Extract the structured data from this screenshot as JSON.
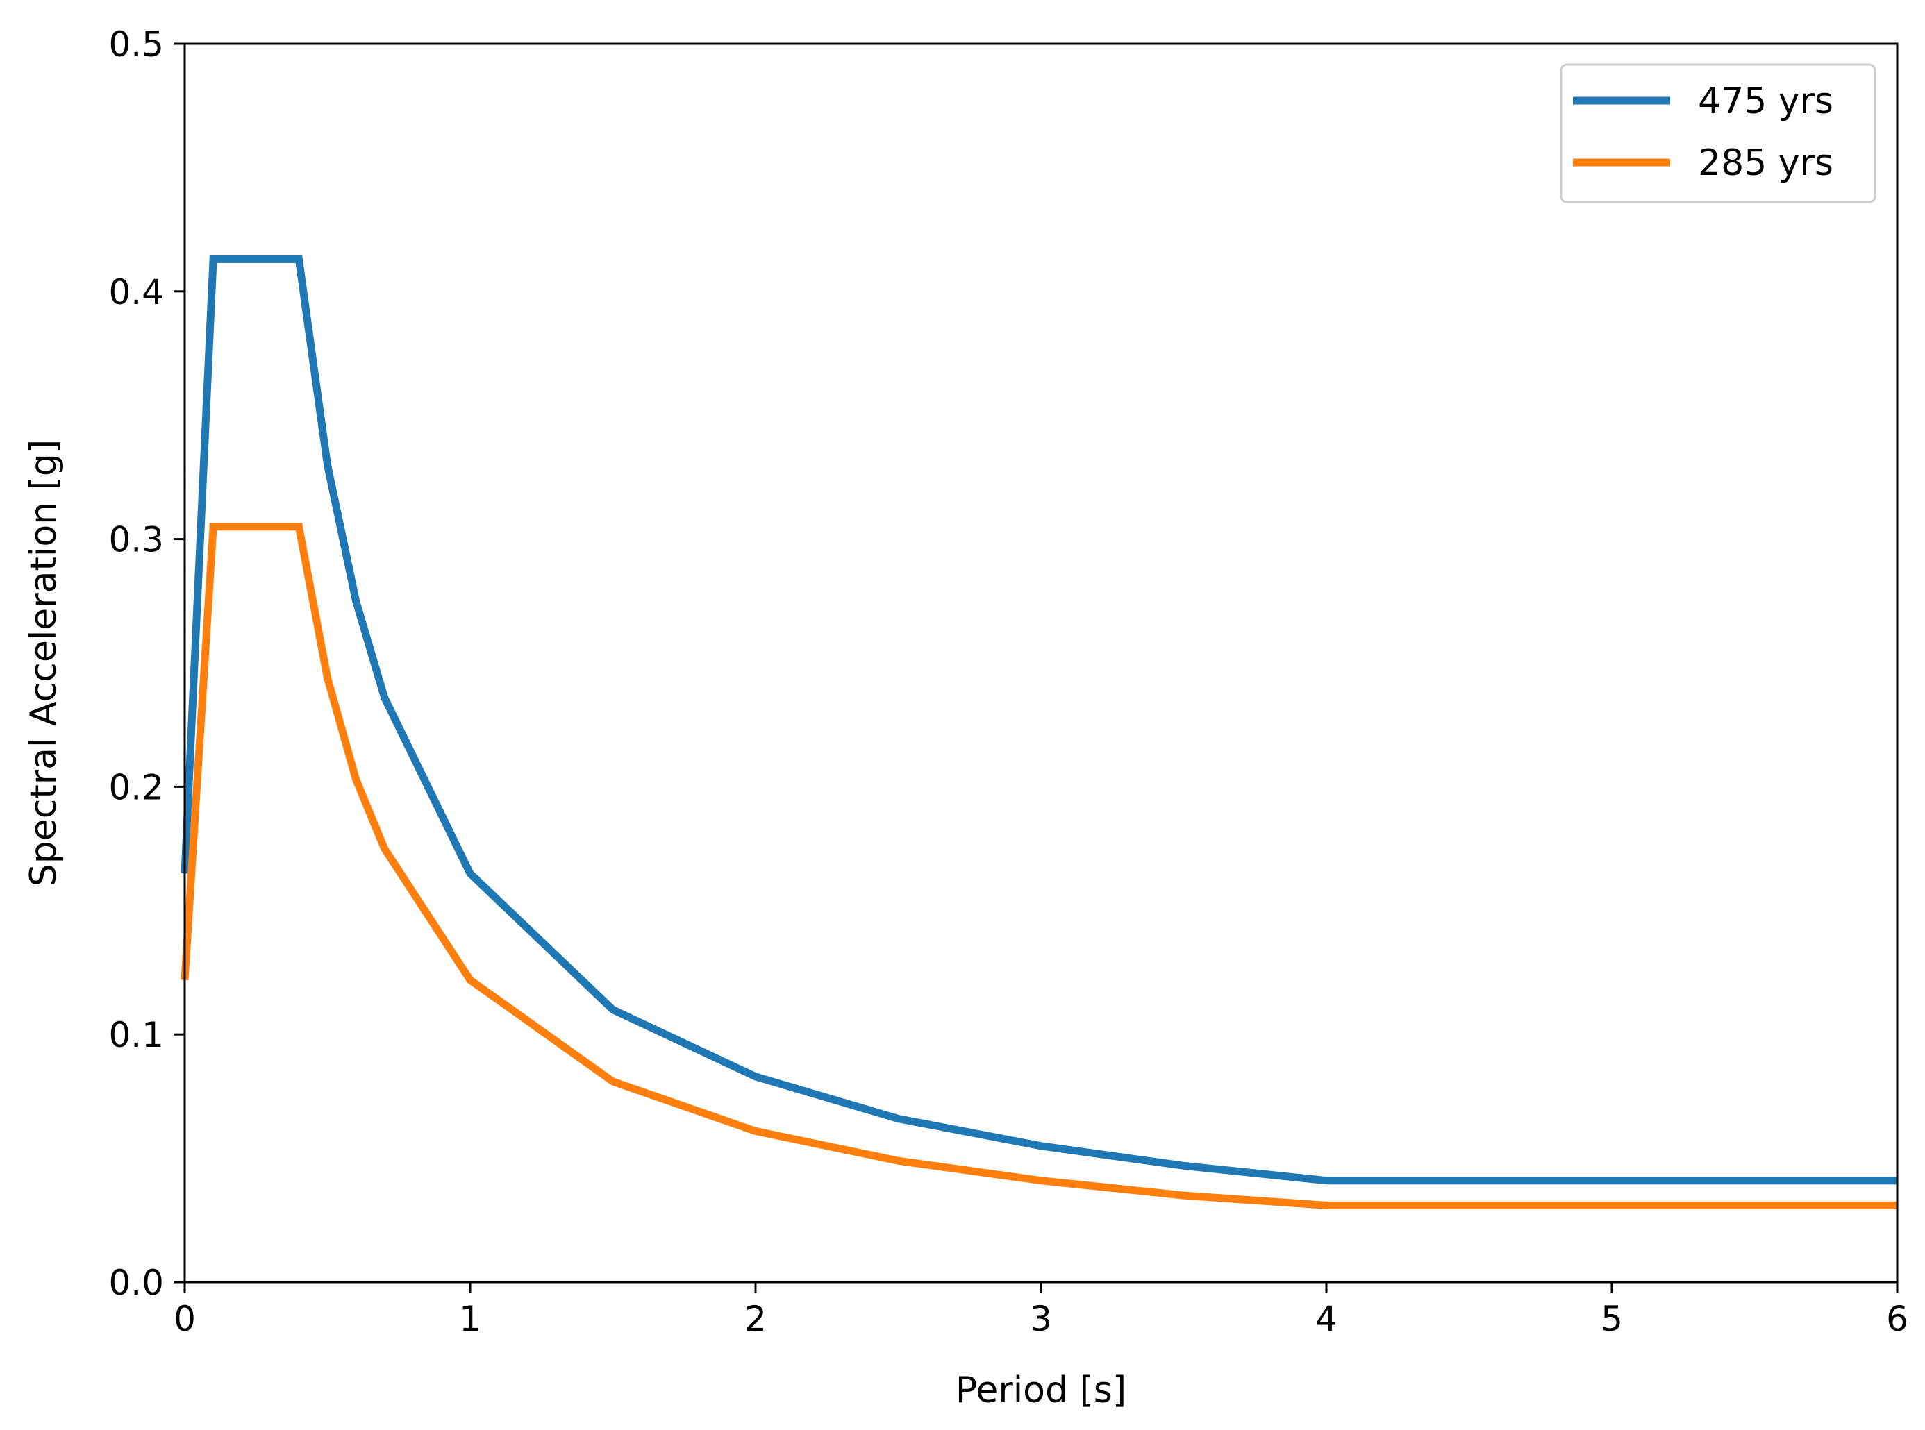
{
  "chart_data": {
    "type": "line",
    "title": "",
    "xlabel": "Period [s]",
    "ylabel": "Spectral Acceleration [g]",
    "xlim": [
      0,
      6
    ],
    "ylim": [
      0,
      0.5
    ],
    "xticks": [
      0,
      1,
      2,
      3,
      4,
      5,
      6
    ],
    "xtick_labels": [
      "0",
      "1",
      "2",
      "3",
      "4",
      "5",
      "6"
    ],
    "yticks": [
      0.0,
      0.1,
      0.2,
      0.3,
      0.4,
      0.5
    ],
    "ytick_labels": [
      "0.0",
      "0.1",
      "0.2",
      "0.3",
      "0.4",
      "0.5"
    ],
    "grid": false,
    "legend_position": "top-right",
    "series": [
      {
        "name": "475 yrs",
        "color": "#1f77b4",
        "x": [
          0,
          0.1,
          0.4,
          0.5,
          0.6,
          0.7,
          1.0,
          1.5,
          2.0,
          2.5,
          3.0,
          3.5,
          4.0,
          6.0
        ],
        "y": [
          0.165,
          0.413,
          0.413,
          0.33,
          0.275,
          0.236,
          0.165,
          0.11,
          0.083,
          0.066,
          0.055,
          0.047,
          0.041,
          0.041
        ]
      },
      {
        "name": "285 yrs",
        "color": "#ff7f0e",
        "x": [
          0,
          0.1,
          0.4,
          0.5,
          0.6,
          0.7,
          1.0,
          1.5,
          2.0,
          2.5,
          3.0,
          3.5,
          4.0,
          6.0
        ],
        "y": [
          0.122,
          0.305,
          0.305,
          0.244,
          0.203,
          0.175,
          0.122,
          0.081,
          0.061,
          0.049,
          0.041,
          0.035,
          0.031,
          0.031
        ]
      }
    ]
  }
}
